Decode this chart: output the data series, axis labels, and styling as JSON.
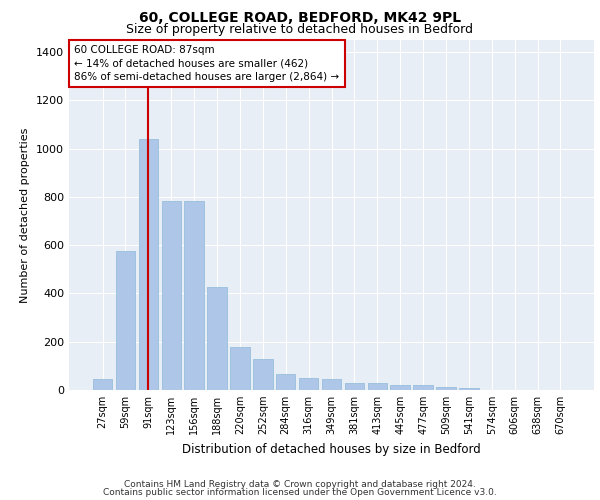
{
  "title_line1": "60, COLLEGE ROAD, BEDFORD, MK42 9PL",
  "title_line2": "Size of property relative to detached houses in Bedford",
  "xlabel": "Distribution of detached houses by size in Bedford",
  "ylabel": "Number of detached properties",
  "footer_line1": "Contains HM Land Registry data © Crown copyright and database right 2024.",
  "footer_line2": "Contains public sector information licensed under the Open Government Licence v3.0.",
  "categories": [
    "27sqm",
    "59sqm",
    "91sqm",
    "123sqm",
    "156sqm",
    "188sqm",
    "220sqm",
    "252sqm",
    "284sqm",
    "316sqm",
    "349sqm",
    "381sqm",
    "413sqm",
    "445sqm",
    "477sqm",
    "509sqm",
    "541sqm",
    "574sqm",
    "606sqm",
    "638sqm",
    "670sqm"
  ],
  "values": [
    45,
    575,
    1040,
    785,
    785,
    425,
    180,
    130,
    65,
    50,
    45,
    30,
    30,
    20,
    20,
    12,
    10,
    0,
    0,
    0,
    0
  ],
  "bar_color": "#aec6e8",
  "bar_edge_color": "#8db8d8",
  "vline_x": 2.0,
  "vline_color": "#cc0000",
  "annotation_text": "60 COLLEGE ROAD: 87sqm\n← 14% of detached houses are smaller (462)\n86% of semi-detached houses are larger (2,864) →",
  "annotation_box_color": "#cc0000",
  "annotation_fill_color": "#ffffff",
  "ylim": [
    0,
    1450
  ],
  "yticks": [
    0,
    200,
    400,
    600,
    800,
    1000,
    1200,
    1400
  ],
  "plot_bg_color": "#e8eef5",
  "grid_color": "#ffffff",
  "title1_fontsize": 10,
  "title2_fontsize": 9,
  "annotation_fontsize": 7.5,
  "xlabel_fontsize": 8.5,
  "ylabel_fontsize": 8,
  "tick_fontsize": 7,
  "footer_fontsize": 6.5
}
